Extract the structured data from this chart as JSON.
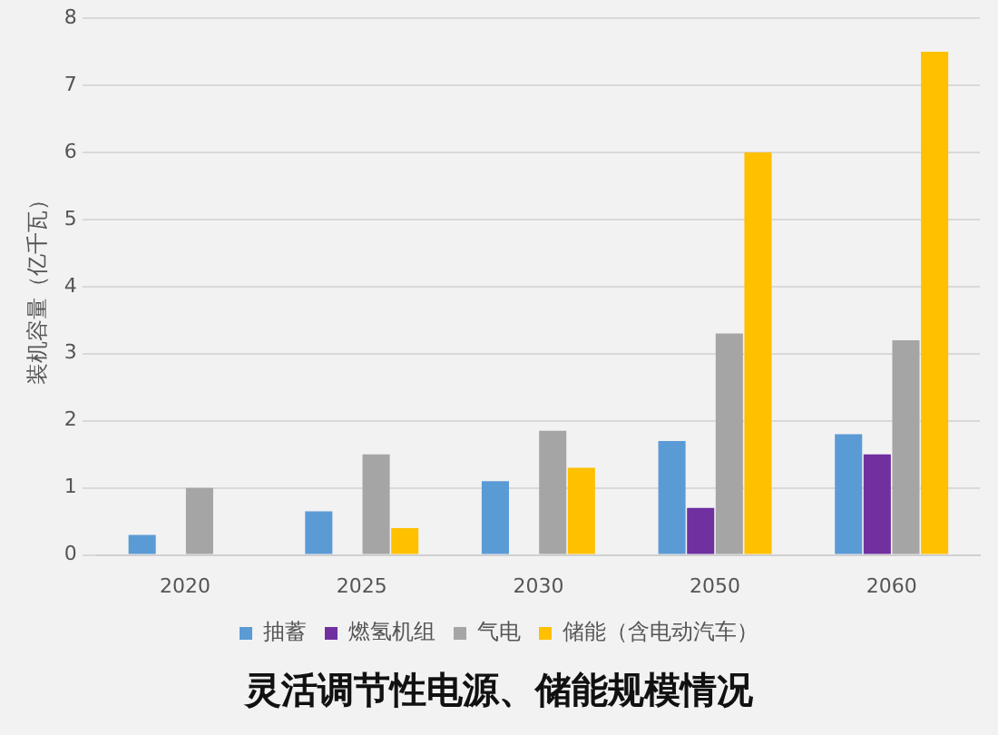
{
  "chart_data": {
    "type": "bar",
    "title": "灵活调节性电源、储能规模情况",
    "ylabel": "装机容量（亿千瓦）",
    "categories": [
      "2020",
      "2025",
      "2030",
      "2050",
      "2060"
    ],
    "series": [
      {
        "name": "抽蓄",
        "color": "#5b9bd5",
        "values": [
          0.3,
          0.65,
          1.1,
          1.7,
          1.8
        ]
      },
      {
        "name": "燃氢机组",
        "color": "#7030a0",
        "values": [
          null,
          null,
          null,
          0.7,
          1.5
        ]
      },
      {
        "name": "气电",
        "color": "#a5a5a5",
        "values": [
          1.0,
          1.5,
          1.85,
          3.3,
          3.2
        ]
      },
      {
        "name": "储能（含电动汽车）",
        "color": "#ffc000",
        "values": [
          null,
          0.4,
          1.3,
          6.0,
          7.5
        ]
      }
    ],
    "ylim": [
      0,
      8
    ],
    "yticks": [
      0,
      1,
      2,
      3,
      4,
      5,
      6,
      7,
      8
    ],
    "grid": "y",
    "legend": "bottom"
  }
}
